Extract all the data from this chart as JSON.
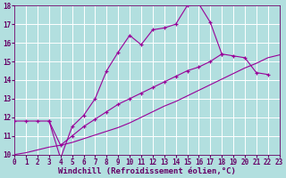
{
  "background_color": "#b2dfdf",
  "grid_color": "#ffffff",
  "line_color": "#990099",
  "tick_color": "#660066",
  "xlabel": "Windchill (Refroidissement éolien,°C)",
  "xlim": [
    0,
    23
  ],
  "ylim": [
    10,
    18
  ],
  "xticks": [
    0,
    1,
    2,
    3,
    4,
    5,
    6,
    7,
    8,
    9,
    10,
    11,
    12,
    13,
    14,
    15,
    16,
    17,
    18,
    19,
    20,
    21,
    22,
    23
  ],
  "yticks": [
    10,
    11,
    12,
    13,
    14,
    15,
    16,
    17,
    18
  ],
  "upper_curve_x": [
    3,
    4,
    5,
    6,
    7,
    8,
    9,
    10,
    11,
    12,
    13,
    14,
    15,
    16,
    17,
    18
  ],
  "upper_curve_y": [
    11.8,
    9.8,
    11.5,
    12.1,
    13.0,
    14.5,
    15.5,
    16.4,
    15.9,
    16.7,
    16.8,
    17.0,
    18.0,
    18.1,
    17.1,
    15.4
  ],
  "middle_curve_x": [
    0,
    1,
    2,
    3,
    4,
    5,
    6,
    7,
    8,
    9,
    10,
    11,
    12,
    13,
    14,
    15,
    16,
    17,
    18,
    19,
    20,
    21,
    22
  ],
  "middle_curve_y": [
    11.8,
    11.8,
    11.8,
    11.8,
    10.5,
    11.0,
    11.5,
    11.9,
    12.3,
    12.7,
    13.0,
    13.3,
    13.6,
    13.9,
    14.2,
    14.5,
    14.7,
    15.0,
    15.4,
    15.3,
    15.2,
    14.4,
    14.3
  ],
  "lower_line_x": [
    0,
    1,
    2,
    3,
    4,
    5,
    6,
    7,
    8,
    9,
    10,
    11,
    12,
    13,
    14,
    15,
    16,
    17,
    18,
    19,
    20,
    21,
    22,
    23
  ],
  "lower_line_y": [
    10.0,
    10.1,
    10.25,
    10.4,
    10.5,
    10.65,
    10.85,
    11.05,
    11.25,
    11.45,
    11.7,
    12.0,
    12.3,
    12.6,
    12.85,
    13.15,
    13.45,
    13.75,
    14.05,
    14.35,
    14.65,
    14.9,
    15.2,
    15.35
  ],
  "tick_fontsize": 5.5,
  "axis_fontsize": 6.5
}
